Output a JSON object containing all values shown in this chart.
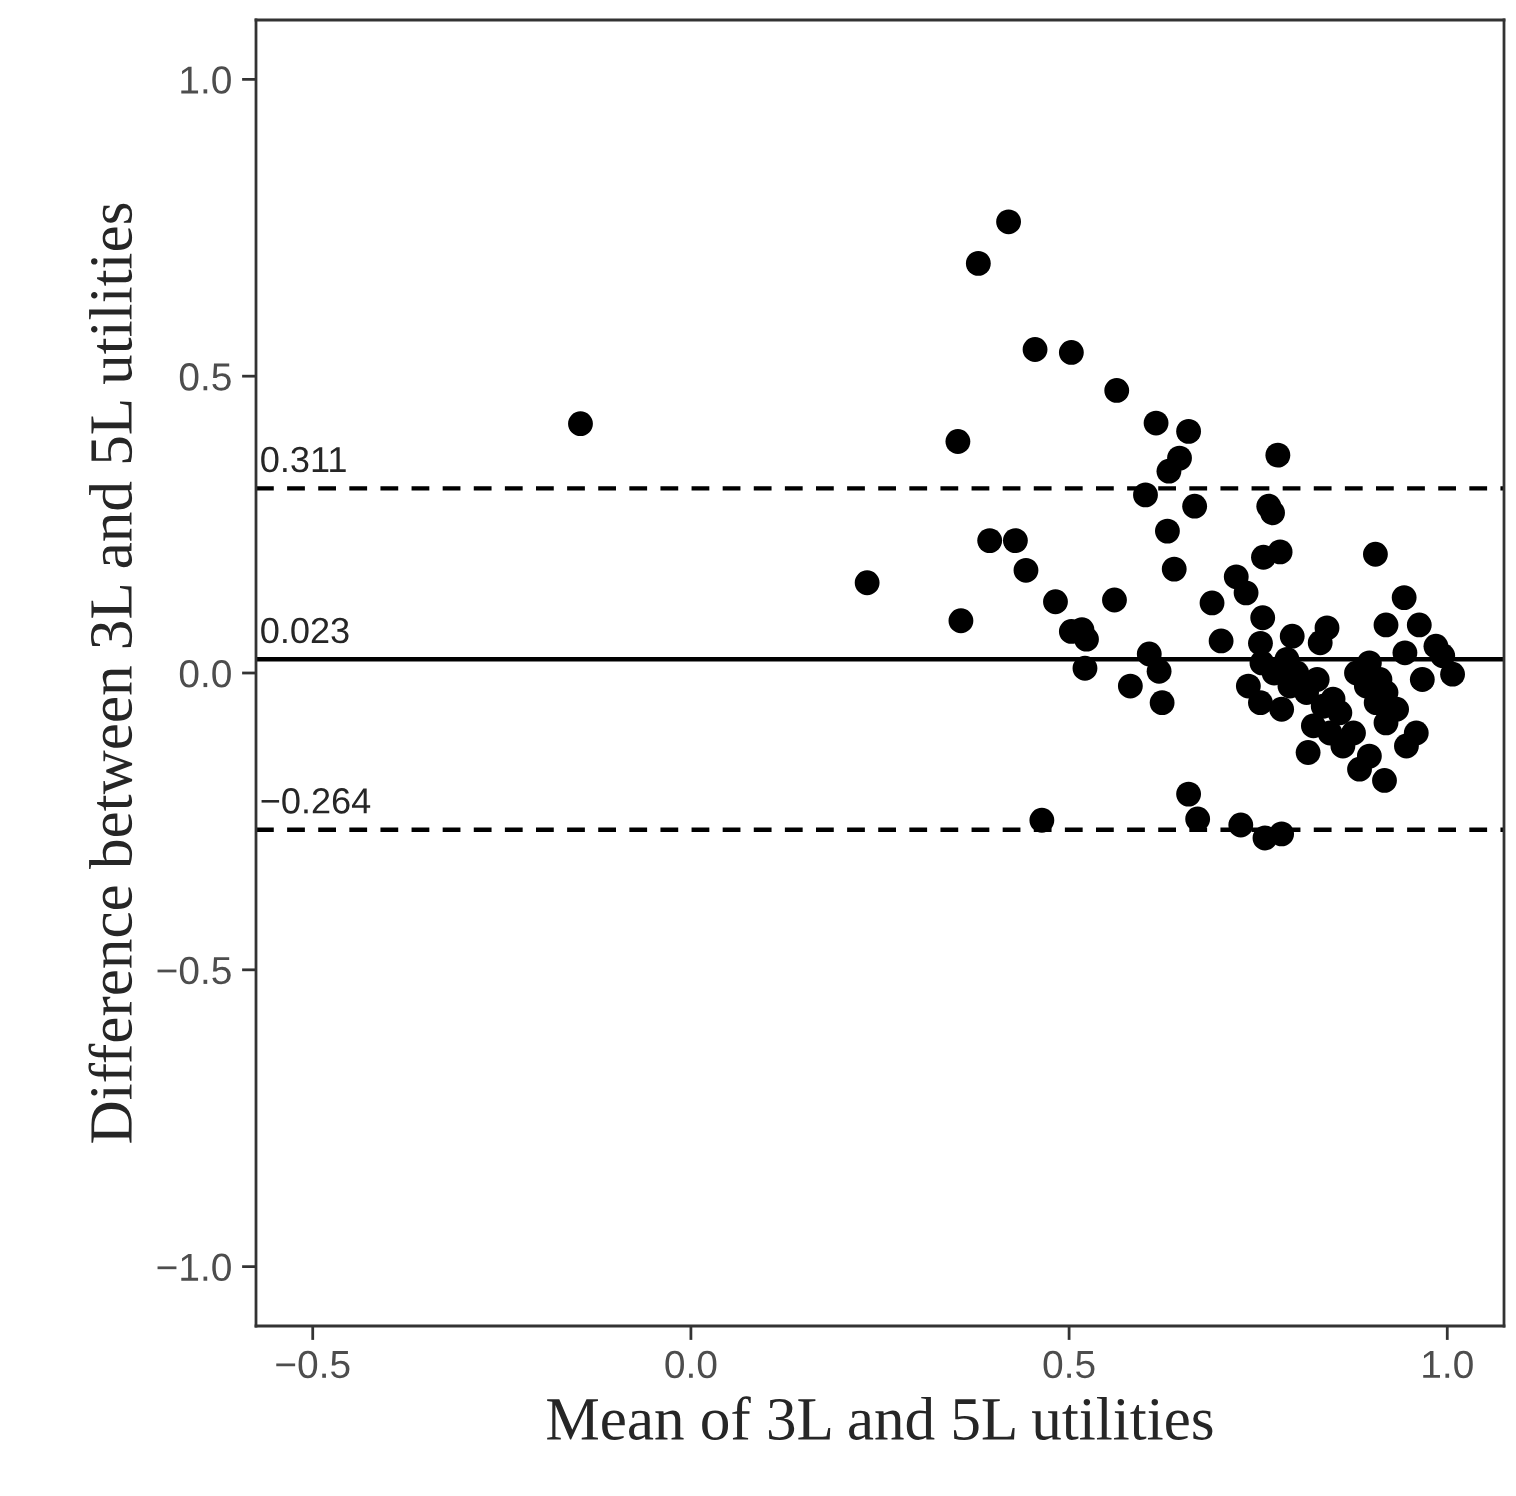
{
  "chart_data": {
    "type": "scatter",
    "xlabel": "Mean of 3L and 5L utilities",
    "ylabel": "Difference between 3L and 5L utilities",
    "xlim": [
      -0.575,
      1.075
    ],
    "ylim": [
      -1.1,
      1.1
    ],
    "xticks": [
      {
        "value": -0.5,
        "label": "−0.5"
      },
      {
        "value": 0,
        "label": "0.0"
      },
      {
        "value": 0.5,
        "label": "0.5"
      },
      {
        "value": 1,
        "label": "1.0"
      }
    ],
    "yticks": [
      {
        "value": -1,
        "label": "−1.0"
      },
      {
        "value": -0.5,
        "label": "−0.5"
      },
      {
        "value": 0,
        "label": "0.0"
      },
      {
        "value": 0.5,
        "label": "0.5"
      },
      {
        "value": 1,
        "label": "1.0"
      }
    ],
    "grid": false,
    "legend": false,
    "marker": "circle",
    "ref_lines": [
      {
        "axis": "y",
        "value": 0.311,
        "label": "0.311",
        "color": "#000000",
        "line_style": "dashed"
      },
      {
        "axis": "y",
        "value": 0.023,
        "label": "0.023",
        "color": "#000000",
        "line_style": "solid"
      },
      {
        "axis": "y",
        "value": -0.264,
        "label": "−0.264",
        "color": "#000000",
        "line_style": "dashed"
      }
    ],
    "series": [
      {
        "color": "#000000",
        "x": [
          -0.146,
          0.42,
          0.38,
          0.455,
          0.503,
          0.353,
          0.395,
          0.429,
          0.443,
          0.233,
          0.357,
          0.482,
          0.503,
          0.464,
          0.563,
          0.615,
          0.658,
          0.646,
          0.632,
          0.601,
          0.666,
          0.63,
          0.639,
          0.776,
          0.764,
          0.769,
          0.779,
          0.757,
          0.905,
          0.721,
          0.734,
          0.689,
          0.56,
          0.517,
          0.523,
          0.521,
          0.701,
          0.756,
          0.753,
          0.795,
          0.832,
          0.841,
          0.943,
          0.919,
          0.963,
          0.944,
          0.985,
          0.994,
          1.007,
          0.967,
          0.606,
          0.619,
          0.581,
          0.623,
          0.737,
          0.753,
          0.771,
          0.781,
          0.801,
          0.814,
          0.828,
          0.836,
          0.849,
          0.858,
          0.823,
          0.845,
          0.876,
          0.862,
          0.816,
          0.792,
          0.788,
          0.755,
          0.88,
          0.897,
          0.911,
          0.893,
          0.919,
          0.906,
          0.933,
          0.919,
          0.959,
          0.946,
          0.897,
          0.884,
          0.917,
          0.658,
          0.67,
          0.727,
          0.759,
          0.781
        ],
        "values": [
          0.42,
          0.76,
          0.69,
          0.545,
          0.54,
          0.39,
          0.223,
          0.223,
          0.173,
          0.152,
          0.088,
          0.12,
          0.07,
          -0.248,
          0.476,
          0.421,
          0.407,
          0.362,
          0.34,
          0.3,
          0.281,
          0.239,
          0.175,
          0.367,
          0.281,
          0.27,
          0.204,
          0.195,
          0.2,
          0.162,
          0.135,
          0.118,
          0.123,
          0.073,
          0.057,
          0.008,
          0.054,
          0.093,
          0.05,
          0.062,
          0.051,
          0.076,
          0.127,
          0.081,
          0.081,
          0.034,
          0.045,
          0.029,
          -0.002,
          -0.011,
          0.032,
          0.003,
          -0.022,
          -0.05,
          -0.022,
          -0.05,
          0.0,
          -0.061,
          0.0,
          -0.033,
          -0.011,
          -0.056,
          -0.044,
          -0.067,
          -0.089,
          -0.101,
          -0.101,
          -0.123,
          -0.134,
          -0.022,
          0.023,
          0.017,
          0.0,
          0.017,
          -0.011,
          -0.022,
          -0.033,
          -0.05,
          -0.061,
          -0.084,
          -0.101,
          -0.123,
          -0.14,
          -0.162,
          -0.181,
          -0.204,
          -0.246,
          -0.256,
          -0.278,
          -0.271
        ]
      }
    ]
  }
}
